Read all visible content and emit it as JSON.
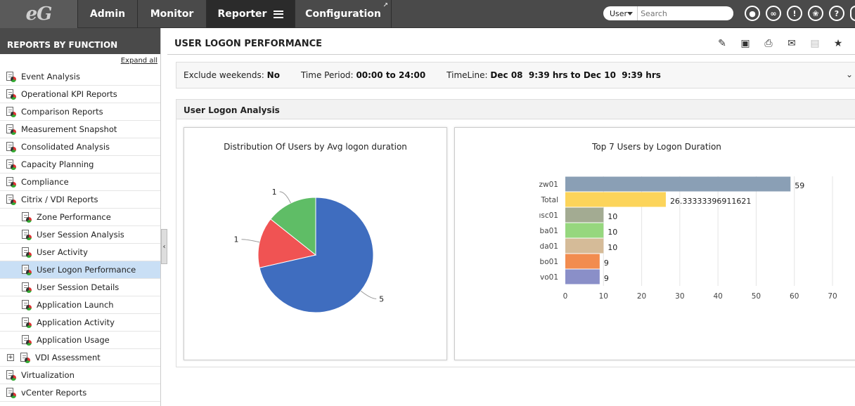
{
  "logo": "eG",
  "nav": [
    {
      "label": "Admin"
    },
    {
      "label": "Monitor"
    },
    {
      "label": "Reporter"
    },
    {
      "label": "Configuration"
    }
  ],
  "search": {
    "scope": "User",
    "placeholder": "Search"
  },
  "toolbar_icons": [
    "user-icon",
    "link-icon",
    "alert-icon",
    "bell-icon",
    "help-icon",
    "power-icon"
  ],
  "sidebar": {
    "title": "REPORTS BY FUNCTION",
    "expand_all": "Expand all",
    "items": [
      {
        "label": "Event Analysis",
        "level": 0
      },
      {
        "label": "Operational KPI Reports",
        "level": 0
      },
      {
        "label": "Comparison Reports",
        "level": 0
      },
      {
        "label": "Measurement Snapshot",
        "level": 0
      },
      {
        "label": "Consolidated Analysis",
        "level": 0
      },
      {
        "label": "Capacity Planning",
        "level": 0
      },
      {
        "label": "Compliance",
        "level": 0
      },
      {
        "label": "Citrix / VDI Reports",
        "level": 0
      },
      {
        "label": "Zone Performance",
        "level": 1
      },
      {
        "label": "User Session Analysis",
        "level": 1
      },
      {
        "label": "User Activity",
        "level": 1
      },
      {
        "label": "User Logon Performance",
        "level": 1,
        "selected": true
      },
      {
        "label": "User Session Details",
        "level": 1
      },
      {
        "label": "Application Launch",
        "level": 1
      },
      {
        "label": "Application Activity",
        "level": 1
      },
      {
        "label": "Application Usage",
        "level": 1
      },
      {
        "label": "VDI Assessment",
        "level": 1,
        "expandable": true
      },
      {
        "label": "Virtualization",
        "level": 0
      },
      {
        "label": "vCenter Reports",
        "level": 0
      }
    ]
  },
  "main": {
    "title": "USER LOGON PERFORMANCE",
    "filters": {
      "exclude_label": "Exclude weekends:",
      "exclude_value": "No",
      "period_label": "Time Period:",
      "period_value": "00:00 to 24:00",
      "timeline_label": "TimeLine:",
      "timeline_value": "Dec 08  9:39 hrs to Dec 10  9:39 hrs"
    },
    "section_title": "User Logon Analysis"
  },
  "chart_data": [
    {
      "type": "pie",
      "title": "Distribution Of Users by Avg logon duration",
      "slices": [
        {
          "value": 5,
          "color": "#3f6dbf"
        },
        {
          "value": 1,
          "color": "#f05353"
        },
        {
          "value": 1,
          "color": "#5fbd66"
        }
      ]
    },
    {
      "type": "bar",
      "orientation": "horizontal",
      "title": "Top 7 Users by Logon Duration",
      "categories": [
        "zw01",
        "Total",
        "ısc01",
        "ba01",
        "da01",
        "bo01",
        "vo01"
      ],
      "values": [
        59,
        26.33333396911621,
        10,
        10,
        10,
        9,
        9
      ],
      "value_labels": [
        "59",
        "26.33333396911621",
        "10",
        "10",
        "10",
        "9",
        "9"
      ],
      "colors": [
        "#8a9fb5",
        "#fcd45a",
        "#a3ab92",
        "#96d77e",
        "#d5bb98",
        "#f28c4f",
        "#8a8fc8"
      ],
      "xlim": [
        0,
        70
      ],
      "xticks": [
        0,
        10,
        20,
        30,
        40,
        50,
        60,
        70
      ],
      "grid": true
    }
  ]
}
